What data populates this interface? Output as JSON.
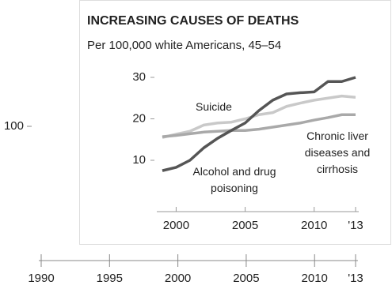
{
  "chart_data": [
    {
      "type": "line",
      "title": "INCREASING CAUSES OF DEATHS",
      "subtitle": "Per 100,000 white Americans, 45–54",
      "x": [
        1999,
        2000,
        2001,
        2002,
        2003,
        2004,
        2005,
        2006,
        2007,
        2008,
        2009,
        2010,
        2011,
        2012,
        2013
      ],
      "series": [
        {
          "name": "Suicide",
          "color": "#c9c9c9",
          "values": [
            15.5,
            16.3,
            17,
            18.5,
            19,
            19.2,
            20,
            21,
            21.5,
            23,
            23.8,
            24.5,
            25,
            25.5,
            25.2
          ]
        },
        {
          "name": "Chronic liver diseases and cirrhosis",
          "color": "#a9a9a9",
          "values": [
            15.7,
            16,
            16.4,
            16.8,
            17,
            17.2,
            17.2,
            17.5,
            18,
            18.5,
            19,
            19.7,
            20.3,
            21,
            21
          ]
        },
        {
          "name": "Alcohol and drug poisoning",
          "color": "#555555",
          "values": [
            7.5,
            8.3,
            10,
            13,
            15.3,
            17.2,
            19,
            22,
            24.5,
            26,
            26.3,
            26.5,
            29,
            29,
            30
          ]
        }
      ],
      "xlim": [
        1999,
        2013
      ],
      "xticks": [
        2000,
        2005,
        2010,
        {
          "value": 2013,
          "label": "'13"
        }
      ],
      "ylim": [
        5,
        32
      ],
      "yticks": [
        10,
        20,
        30
      ]
    },
    {
      "type": "line",
      "xlim": [
        1990,
        2013
      ],
      "xticks": [
        1990,
        1995,
        2000,
        2005,
        2010,
        {
          "value": 2013,
          "label": "'13"
        }
      ],
      "ylim": [
        0,
        100
      ],
      "yticks": [
        100
      ]
    }
  ]
}
